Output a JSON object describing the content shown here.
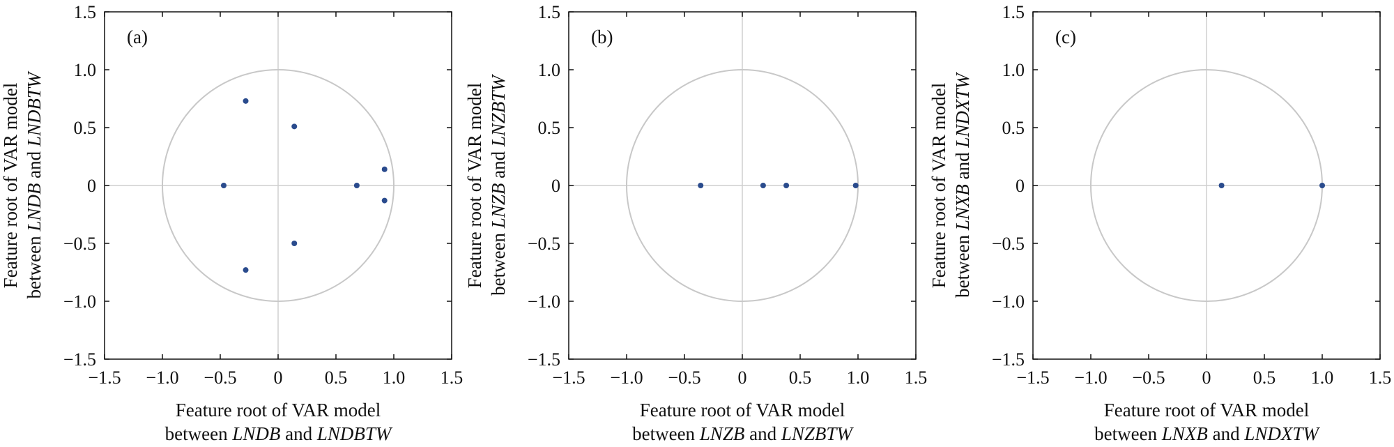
{
  "chart_data": [
    {
      "type": "scatter",
      "panel_label": "(a)",
      "xlabel_line1": "Feature root of VAR model",
      "xlabel_line2_pre": "between ",
      "xlabel_line2_var1": "LNDB",
      "xlabel_line2_mid": " and ",
      "xlabel_line2_var2": "LNDBTW",
      "ylabel_line1": "Feature root of VAR model",
      "ylabel_line2_pre": "between ",
      "ylabel_line2_var1": "LNDB",
      "ylabel_line2_mid": " and ",
      "ylabel_line2_var2": "LNDBTW",
      "xlim": [
        -1.5,
        1.5
      ],
      "ylim": [
        -1.5,
        1.5
      ],
      "xticks": [
        -1.5,
        -1.0,
        -0.5,
        0,
        0.5,
        1.0,
        1.5
      ],
      "yticks": [
        -1.5,
        -1.0,
        -0.5,
        0,
        0.5,
        1.0,
        1.5
      ],
      "xtick_labels": [
        "−1.5",
        "−1.0",
        "−0.5",
        "0",
        "0.5",
        "1.0",
        "1.5"
      ],
      "ytick_labels": [
        "−1.5",
        "−1.0",
        "−0.5",
        "0",
        "0.5",
        "1.0",
        "1.5"
      ],
      "unit_circle": true,
      "points": [
        {
          "x": -0.28,
          "y": 0.73
        },
        {
          "x": 0.14,
          "y": 0.51
        },
        {
          "x": -0.47,
          "y": 0.0
        },
        {
          "x": 0.68,
          "y": 0.0
        },
        {
          "x": 0.92,
          "y": 0.14
        },
        {
          "x": 0.92,
          "y": -0.13
        },
        {
          "x": 0.14,
          "y": -0.5
        },
        {
          "x": -0.28,
          "y": -0.73
        }
      ]
    },
    {
      "type": "scatter",
      "panel_label": "(b)",
      "xlabel_line1": "Feature root of VAR model",
      "xlabel_line2_pre": "between ",
      "xlabel_line2_var1": "LNZB",
      "xlabel_line2_mid": " and ",
      "xlabel_line2_var2": "LNZBTW",
      "ylabel_line1": "Feature root of VAR model",
      "ylabel_line2_pre": "between ",
      "ylabel_line2_var1": "LNZB",
      "ylabel_line2_mid": " and ",
      "ylabel_line2_var2": "LNZBTW",
      "xlim": [
        -1.5,
        1.5
      ],
      "ylim": [
        -1.5,
        1.5
      ],
      "xticks": [
        -1.5,
        -1.0,
        -0.5,
        0,
        0.5,
        1.0,
        1.5
      ],
      "yticks": [
        -1.5,
        -1.0,
        -0.5,
        0,
        0.5,
        1.0,
        1.5
      ],
      "xtick_labels": [
        "−1.5",
        "−1.0",
        "−0.5",
        "0",
        "0.5",
        "1.0",
        "1.5"
      ],
      "ytick_labels": [
        "−1.5",
        "−1.0",
        "−0.5",
        "0",
        "0.5",
        "1.0",
        "1.5"
      ],
      "unit_circle": true,
      "points": [
        {
          "x": -0.36,
          "y": 0.0
        },
        {
          "x": 0.18,
          "y": 0.0
        },
        {
          "x": 0.38,
          "y": 0.0
        },
        {
          "x": 0.98,
          "y": 0.0
        }
      ]
    },
    {
      "type": "scatter",
      "panel_label": "(c)",
      "xlabel_line1": "Feature root of VAR model",
      "xlabel_line2_pre": "between ",
      "xlabel_line2_var1": "LNXB",
      "xlabel_line2_mid": " and ",
      "xlabel_line2_var2": "LNDXTW",
      "ylabel_line1": "Feature root of VAR model",
      "ylabel_line2_pre": "between ",
      "ylabel_line2_var1": "LNXB",
      "ylabel_line2_mid": " and ",
      "ylabel_line2_var2": "LNDXTW",
      "xlim": [
        -1.5,
        1.5
      ],
      "ylim": [
        -1.5,
        1.5
      ],
      "xticks": [
        -1.5,
        -1.0,
        -0.5,
        0,
        0.5,
        1.0,
        1.5
      ],
      "yticks": [
        -1.5,
        -1.0,
        -0.5,
        0,
        0.5,
        1.0,
        1.5
      ],
      "xtick_labels": [
        "−1.5",
        "−1.0",
        "−0.5",
        "0",
        "0.5",
        "1.0",
        "1.5"
      ],
      "ytick_labels": [
        "−1.5",
        "−1.0",
        "−0.5",
        "0",
        "0.5",
        "1.0",
        "1.5"
      ],
      "unit_circle": true,
      "points": [
        {
          "x": 0.13,
          "y": 0.0
        },
        {
          "x": 1.0,
          "y": 0.0
        }
      ]
    }
  ],
  "colors": {
    "point": "#2a4b8d",
    "circle": "#c8c8c8",
    "crosshair": "#cfcfcf",
    "frame": "#111111",
    "text": "#111111"
  }
}
